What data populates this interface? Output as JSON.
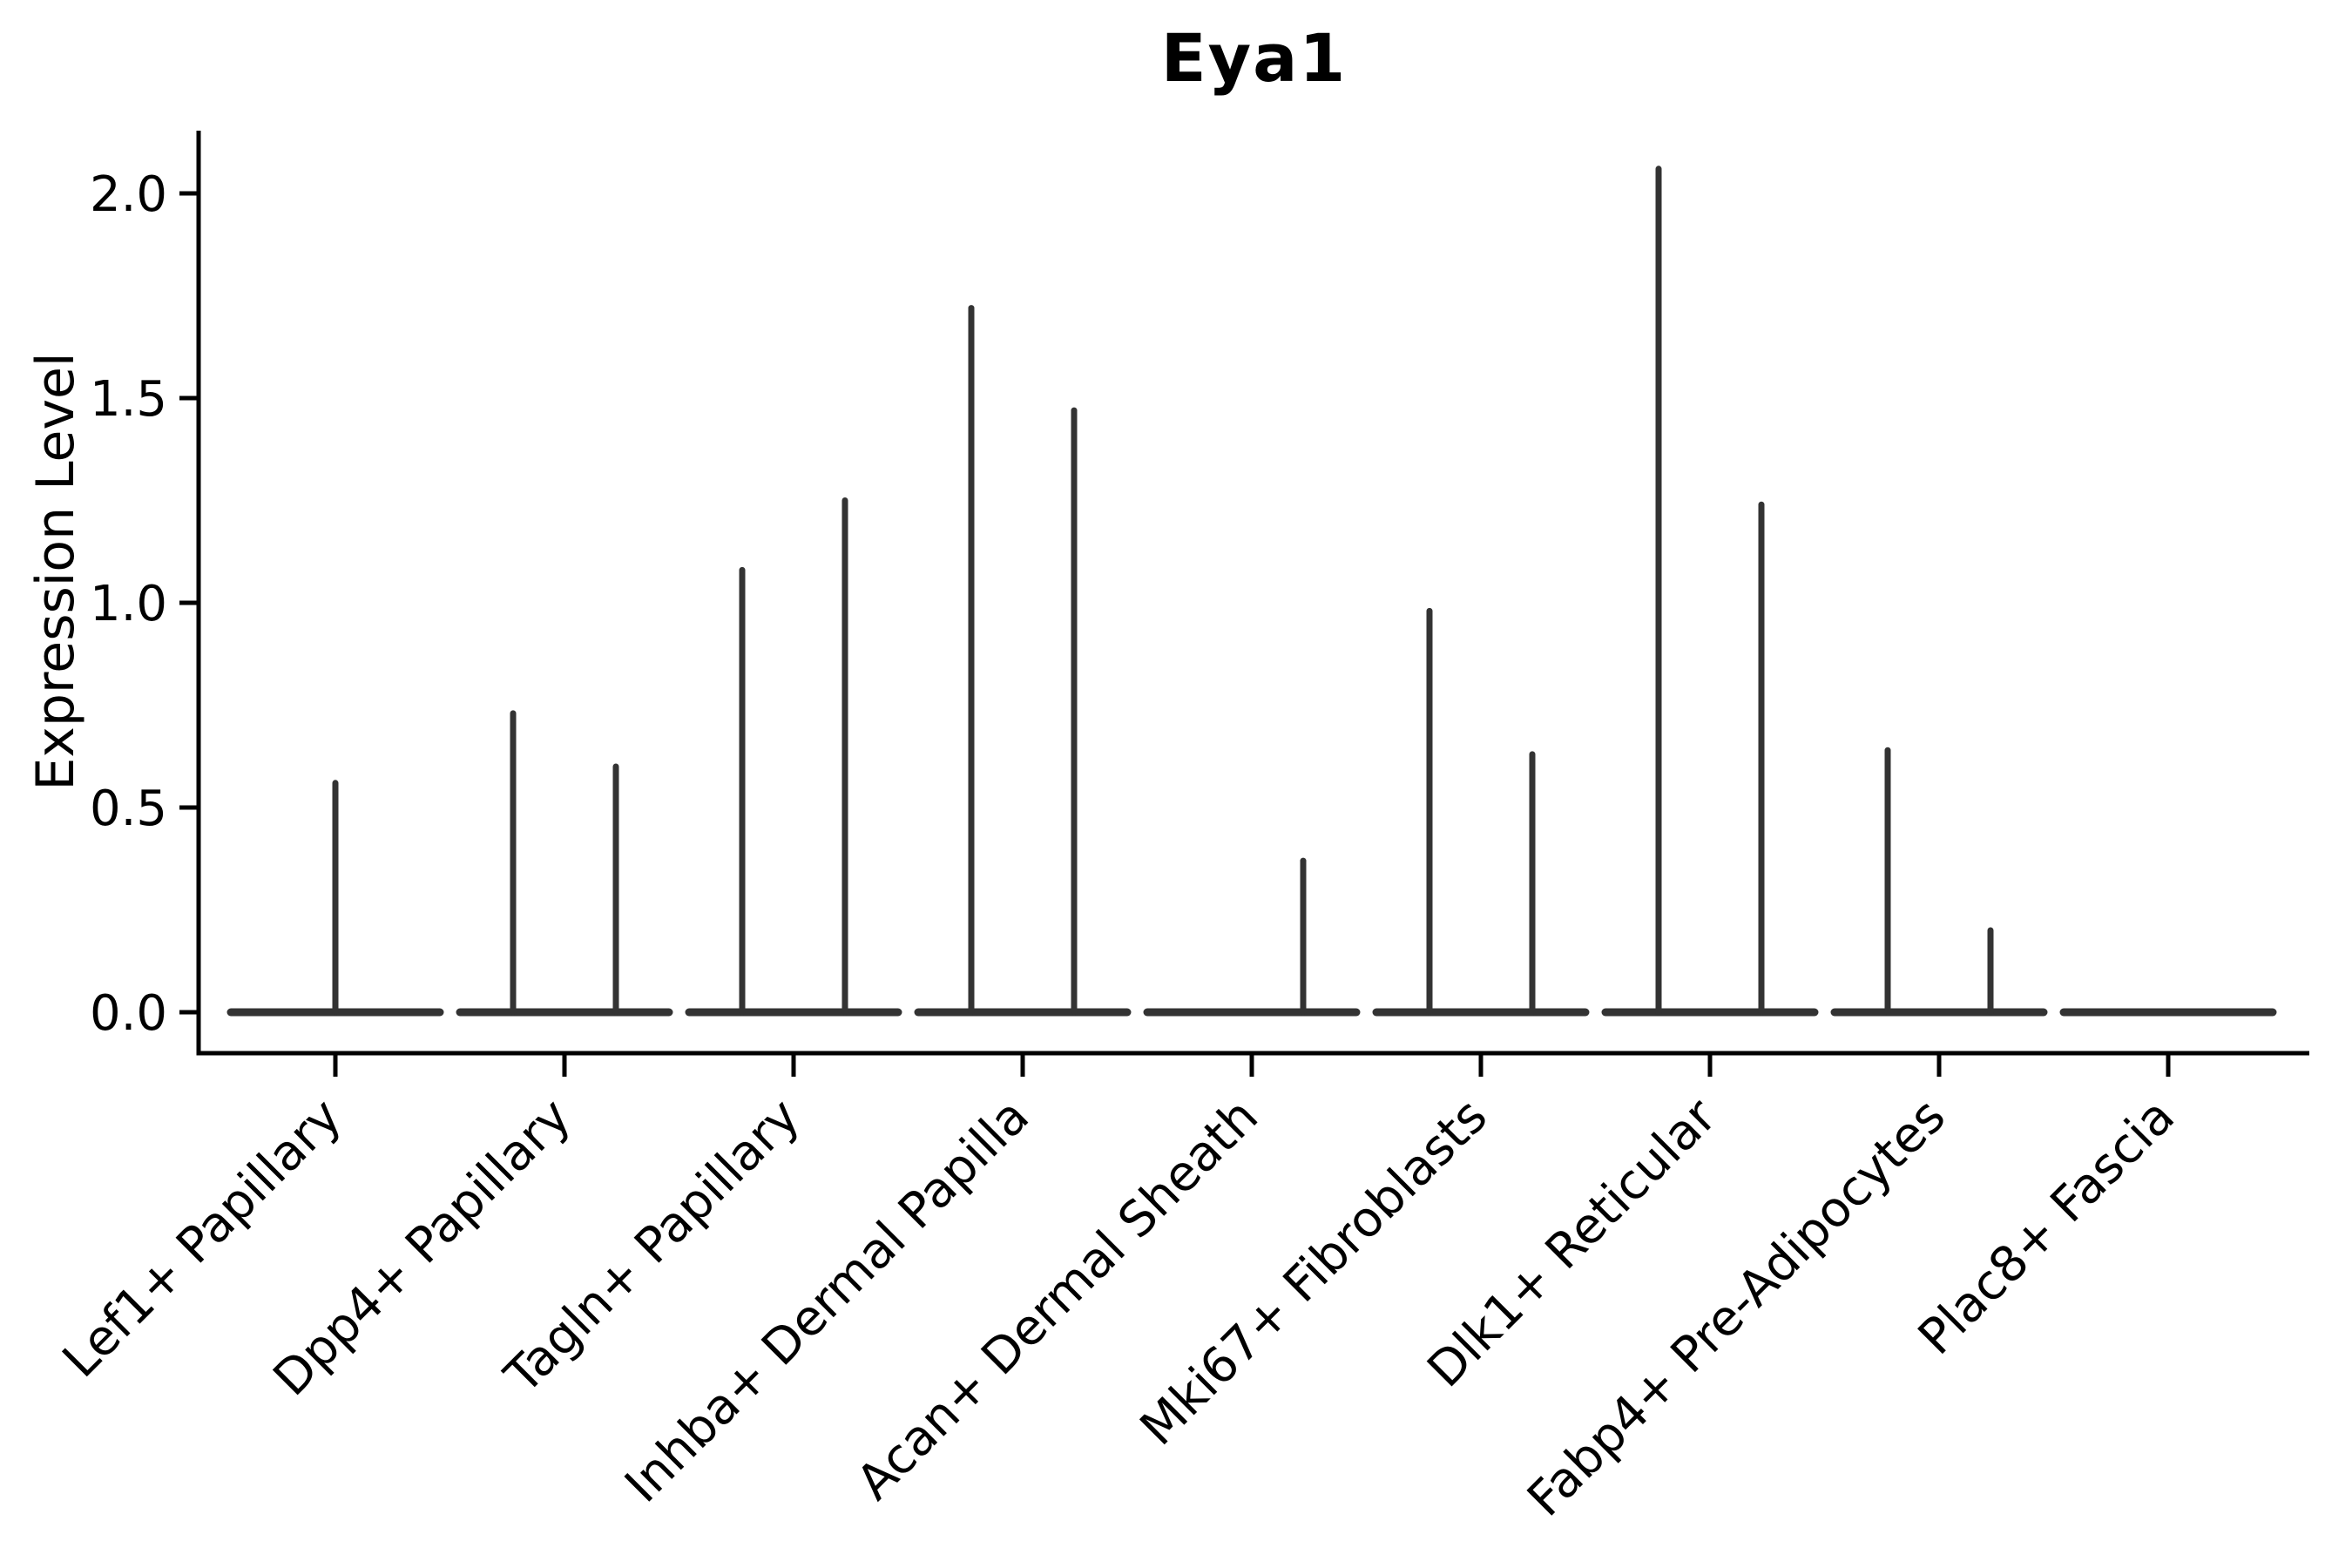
{
  "chart_data": {
    "type": "violin",
    "title": "Eya1",
    "ylabel": "Expression Level",
    "xlabel": "",
    "ylim": [
      -0.1,
      2.15
    ],
    "grid": false,
    "legend": "none",
    "yticks": [
      {
        "value": 0.0,
        "label": "0.0"
      },
      {
        "value": 0.5,
        "label": "0.5"
      },
      {
        "value": 1.0,
        "label": "1.0"
      },
      {
        "value": 1.5,
        "label": "1.5"
      },
      {
        "value": 2.0,
        "label": "2.0"
      }
    ],
    "categories": [
      "Lef1+ Papillary",
      "Dpp4+ Papillary",
      "Tagln+ Papillary",
      "Inhba+ Dermal Papilla",
      "Acan+ Dermal Sheath",
      "Mki67+ Fibroblasts",
      "Dlk1+ Reticular",
      "Fabp4+ Pre-Adipocytes",
      "Plac8+ Fascia"
    ],
    "violin_style": "zero-inflated: each violin is a flat baseline at 0 with a thin spike rising to its maximum expression value",
    "series": [
      {
        "category": "Lef1+ Papillary",
        "spikes": [
          {
            "group": "center",
            "max": 0.56
          }
        ]
      },
      {
        "category": "Dpp4+ Papillary",
        "spikes": [
          {
            "group": "left",
            "max": 0.73
          },
          {
            "group": "right",
            "max": 0.6
          }
        ]
      },
      {
        "category": "Tagln+ Papillary",
        "spikes": [
          {
            "group": "left",
            "max": 1.08
          },
          {
            "group": "right",
            "max": 1.25
          }
        ]
      },
      {
        "category": "Inhba+ Dermal Papilla",
        "spikes": [
          {
            "group": "left",
            "max": 1.72
          },
          {
            "group": "right",
            "max": 1.47
          }
        ]
      },
      {
        "category": "Acan+ Dermal Sheath",
        "spikes": [
          {
            "group": "right",
            "max": 0.37
          }
        ]
      },
      {
        "category": "Mki67+ Fibroblasts",
        "spikes": [
          {
            "group": "left",
            "max": 0.98
          },
          {
            "group": "right",
            "max": 0.63
          }
        ]
      },
      {
        "category": "Dlk1+ Reticular",
        "spikes": [
          {
            "group": "left",
            "max": 2.06
          },
          {
            "group": "right",
            "max": 1.24
          }
        ]
      },
      {
        "category": "Fabp4+ Pre-Adipocytes",
        "spikes": [
          {
            "group": "left",
            "max": 0.64
          },
          {
            "group": "right",
            "max": 0.2
          }
        ]
      },
      {
        "category": "Plac8+ Fascia",
        "spikes": []
      }
    ],
    "colors": {
      "violin_stroke": "#333333",
      "axis": "#000000",
      "text": "#000000",
      "background": "#ffffff"
    }
  }
}
